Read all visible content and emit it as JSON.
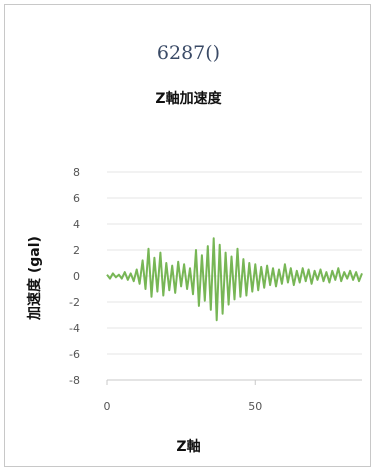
{
  "chart_data": {
    "type": "line",
    "title": "6287()",
    "subtitle": "Z軸加速度",
    "xlabel": "Z軸",
    "ylabel": "加速度 (gal)",
    "xlim": [
      0,
      86
    ],
    "ylim": [
      -8,
      8
    ],
    "x_ticks": [
      0,
      50
    ],
    "x_tick_labels": [
      "0",
      "50"
    ],
    "y_ticks": [
      8,
      6,
      4,
      2,
      0,
      -2,
      -4,
      -6,
      -8
    ],
    "y_tick_labels": [
      "8",
      "6",
      "4",
      "2",
      "0",
      "-2",
      "-4",
      "-6",
      "-8"
    ],
    "grid": true,
    "legend": "none",
    "series": [
      {
        "color": "#77b655",
        "x": [
          0,
          1,
          2,
          3,
          4,
          5,
          6,
          7,
          8,
          9,
          10,
          11,
          12,
          13,
          14,
          15,
          16,
          17,
          18,
          19,
          20,
          21,
          22,
          23,
          24,
          25,
          26,
          27,
          28,
          29,
          30,
          31,
          32,
          33,
          34,
          35,
          36,
          37,
          38,
          39,
          40,
          41,
          42,
          43,
          44,
          45,
          46,
          47,
          48,
          49,
          50,
          51,
          52,
          53,
          54,
          55,
          56,
          57,
          58,
          59,
          60,
          61,
          62,
          63,
          64,
          65,
          66,
          67,
          68,
          69,
          70,
          71,
          72,
          73,
          74,
          75,
          76,
          77,
          78,
          79,
          80,
          81,
          82,
          83,
          84,
          85,
          86
        ],
        "y": [
          0.1,
          -0.2,
          0.2,
          -0.1,
          0.1,
          -0.2,
          0.3,
          -0.3,
          0.2,
          -0.4,
          0.5,
          -0.6,
          1.2,
          -1.0,
          2.1,
          -1.6,
          1.4,
          -1.2,
          1.8,
          -1.5,
          1.0,
          -1.1,
          0.8,
          -1.3,
          1.1,
          -0.8,
          0.9,
          -1.0,
          0.6,
          -1.4,
          2.0,
          -2.3,
          1.6,
          -1.9,
          2.3,
          -2.6,
          2.9,
          -3.4,
          2.4,
          -2.9,
          1.8,
          -2.2,
          1.5,
          -1.8,
          2.1,
          -1.6,
          1.3,
          -1.5,
          1.0,
          -1.2,
          0.9,
          -1.1,
          0.7,
          -0.9,
          0.8,
          -0.7,
          0.6,
          -0.8,
          0.5,
          -0.6,
          0.9,
          -0.5,
          0.6,
          -0.7,
          0.4,
          -0.5,
          0.6,
          -0.4,
          0.5,
          -0.6,
          0.4,
          -0.3,
          0.5,
          -0.4,
          0.3,
          -0.5,
          0.4,
          -0.3,
          0.6,
          -0.4,
          0.3,
          -0.2,
          0.4,
          -0.3,
          0.3,
          -0.4,
          0.2
        ]
      }
    ]
  }
}
